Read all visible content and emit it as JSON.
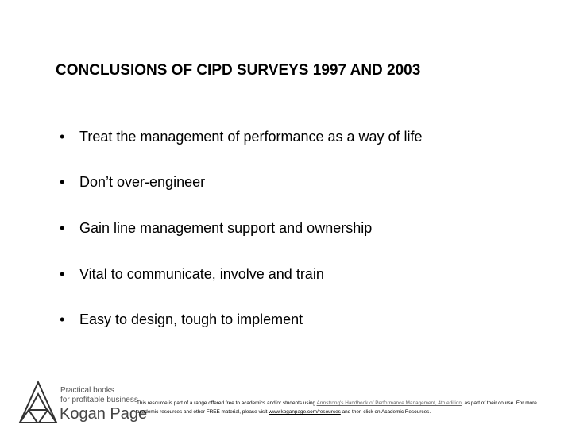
{
  "title": "CONCLUSIONS OF CIPD SURVEYS 1997 AND 2003",
  "bullets": [
    "Treat the management of performance as a way of life",
    "Don’t over-engineer",
    "Gain line management support and ownership",
    "Vital to communicate, involve and train",
    "Easy to design, tough to implement"
  ],
  "logo": {
    "tagline_1": "Practical books",
    "tagline_2": "for profitable business",
    "name": "Kogan Page"
  },
  "footer": {
    "text_1": "This resource is part of a range offered free to academics and/or students using ",
    "link_1": "Armstrong's Handbook of Performance Management, 4th edition",
    "text_2": ", as part of their course. For more academic resources and other FREE material, please visit ",
    "link_2": "www.koganpage.com/resources",
    "text_3": " and then click on Academic Resources."
  }
}
